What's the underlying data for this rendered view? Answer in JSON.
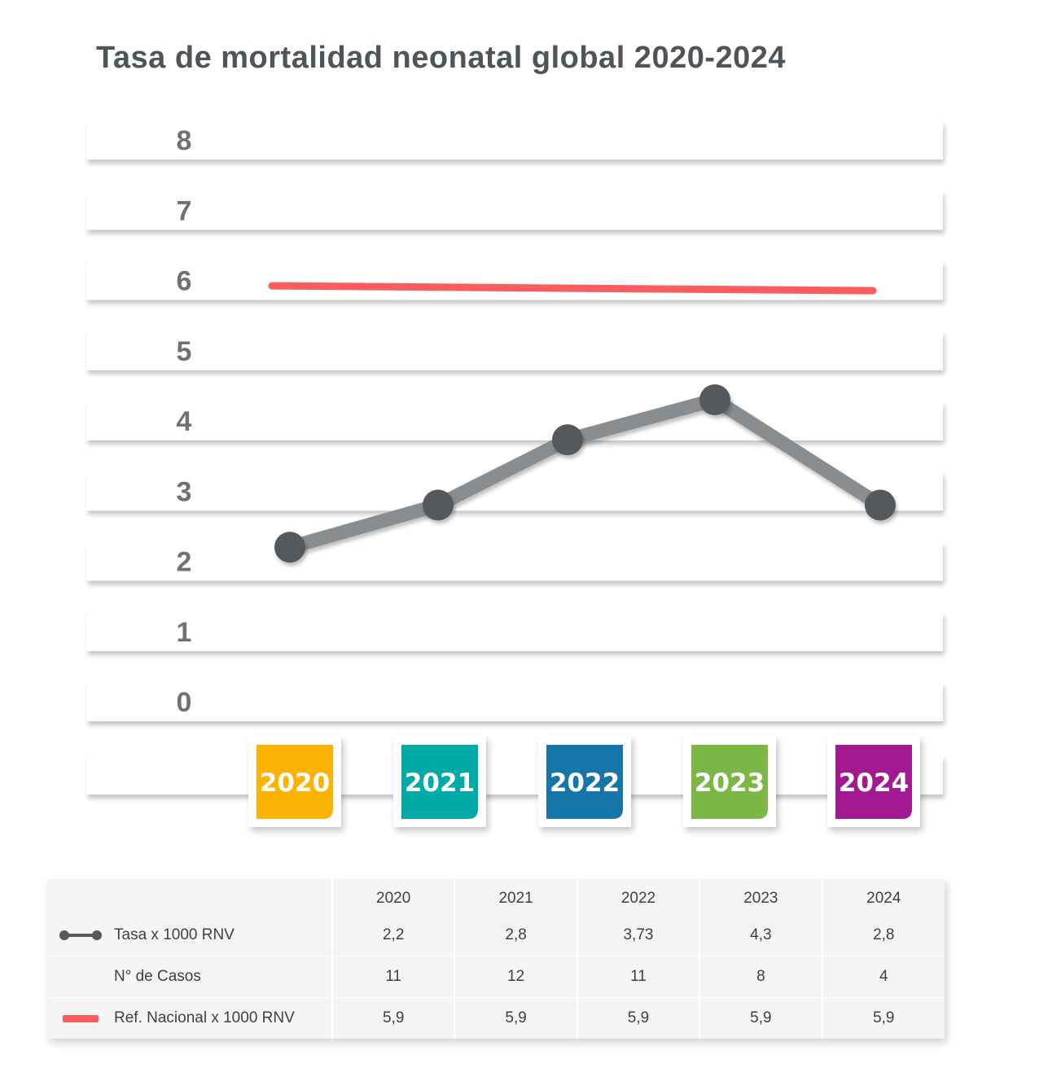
{
  "title": "Tasa de mortalidad neonatal global 2020-2024",
  "colors": {
    "series_line": "#8a8d8f",
    "series_marker": "#54595d",
    "reference_line": "#fb5c5e",
    "year_2020": "#fbb300",
    "year_2021": "#00aaa6",
    "year_2022": "#1576aa",
    "year_2023": "#7ab744",
    "year_2024": "#a3198f"
  },
  "chart_data": {
    "type": "line",
    "title": "Tasa de mortalidad neonatal global 2020-2024",
    "categories": [
      "2020",
      "2021",
      "2022",
      "2023",
      "2024"
    ],
    "y_ticks": [
      "0",
      "1",
      "2",
      "3",
      "4",
      "5",
      "6",
      "7",
      "8"
    ],
    "ylim": [
      0,
      8
    ],
    "grid": false,
    "series": [
      {
        "name": "Tasa x 1000 RNV",
        "values": [
          2.2,
          2.8,
          3.73,
          4.3,
          2.8
        ]
      },
      {
        "name": "Ref. Nacional x 1000 RNV",
        "values": [
          5.9,
          5.9,
          5.9,
          5.9,
          5.9
        ]
      }
    ]
  },
  "table": {
    "header": [
      "2020",
      "2021",
      "2022",
      "2023",
      "2024"
    ],
    "rows": [
      {
        "label": "Tasa x 1000 RNV",
        "symbol": "line-marker",
        "values": [
          "2,2",
          "2,8",
          "3,73",
          "4,3",
          "2,8"
        ]
      },
      {
        "label": "N° de Casos",
        "symbol": "none",
        "values": [
          "11",
          "12",
          "11",
          "8",
          "4"
        ]
      },
      {
        "label": "Ref. Nacional x 1000 RNV",
        "symbol": "red-line",
        "values": [
          "5,9",
          "5,9",
          "5,9",
          "5,9",
          "5,9"
        ]
      }
    ]
  }
}
